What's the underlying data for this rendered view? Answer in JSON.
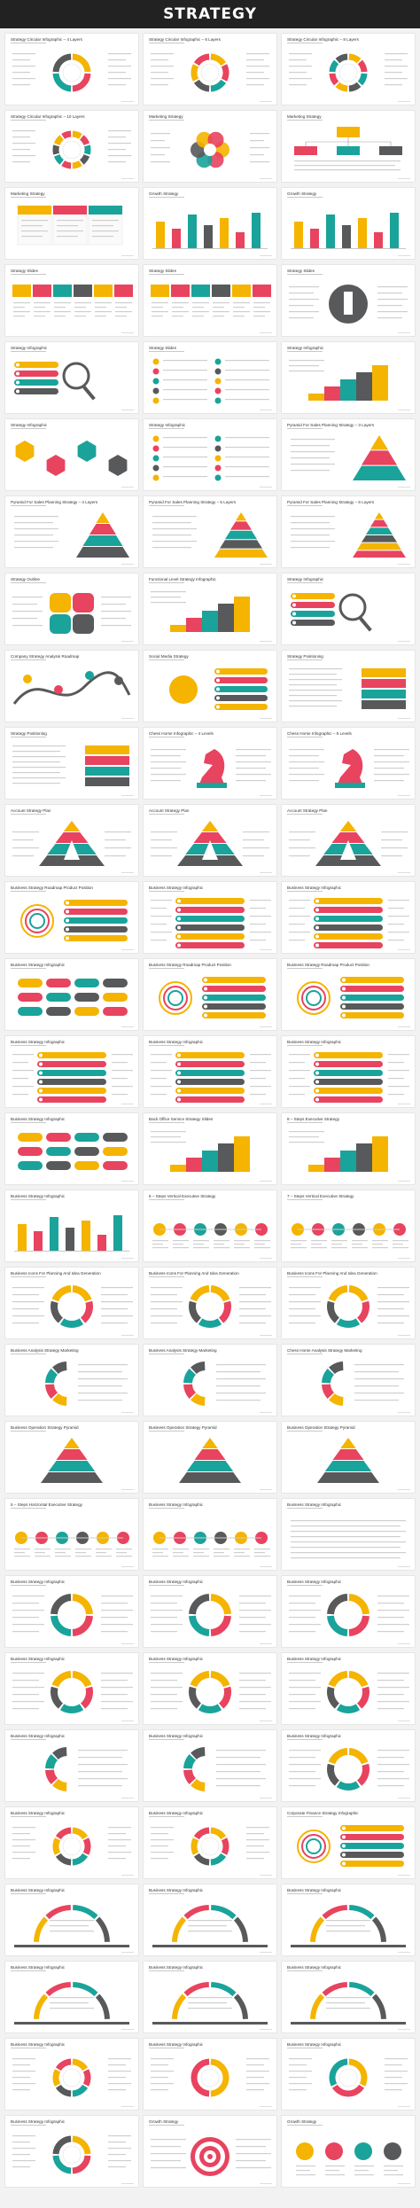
{
  "banner": {
    "title": "STRATEGY"
  },
  "colors": {
    "yellow": "#f4b400",
    "red": "#e8435f",
    "teal": "#1aa39a",
    "gray": "#58595b",
    "light": "#e6e6e6"
  },
  "slides": [
    {
      "title": "Strategy Circular Infographic – 4 Layers",
      "graphic": "ring4"
    },
    {
      "title": "Strategy Circular Infographic – 6 Layers",
      "graphic": "ring6"
    },
    {
      "title": "Strategy Circular Infographic – 8 Layers",
      "graphic": "ring8"
    },
    {
      "title": "Strategy Circular Infographic – 10 Layers",
      "graphic": "ring10"
    },
    {
      "title": "Marketing Strategy",
      "graphic": "flower"
    },
    {
      "title": "Marketing Strategy",
      "graphic": "orgchart"
    },
    {
      "title": "Marketing Strategy",
      "graphic": "cards"
    },
    {
      "title": "Growth Strategy",
      "graphic": "bars"
    },
    {
      "title": "Growth Strategy",
      "graphic": "bars2"
    },
    {
      "title": "Strategy Slides",
      "graphic": "ribbon"
    },
    {
      "title": "Strategy Slides",
      "graphic": "ribbon2"
    },
    {
      "title": "Strategy Slides",
      "graphic": "chess"
    },
    {
      "title": "Strategy Infographic",
      "graphic": "magnifier"
    },
    {
      "title": "Strategy Slides",
      "graphic": "vlist"
    },
    {
      "title": "Strategy Infographic",
      "graphic": "stairs"
    },
    {
      "title": "Strategy Infographic",
      "graphic": "hex"
    },
    {
      "title": "Strategy Infographic",
      "graphic": "checklist"
    },
    {
      "title": "Pyramid For Sales Planning Strategy – 3 Layers",
      "graphic": "pyr3"
    },
    {
      "title": "Pyramid For Sales Planning Strategy – 4 Layers",
      "graphic": "pyr4"
    },
    {
      "title": "Pyramid For Sales Planning Strategy – 5 Layers",
      "graphic": "pyr5"
    },
    {
      "title": "Pyramid For Sales Planning Strategy – 6 Layers",
      "graphic": "pyr6"
    },
    {
      "title": "Strategy Outline",
      "graphic": "quad"
    },
    {
      "title": "Functional Level Strategy Infographic",
      "graphic": "podium"
    },
    {
      "title": "Strategy Infographic",
      "graphic": "magnifier2"
    },
    {
      "title": "Company Strategy Analysis Roadmap",
      "graphic": "roadmap"
    },
    {
      "title": "Social Media Strategy",
      "graphic": "social"
    },
    {
      "title": "Strategy Positioning",
      "graphic": "position"
    },
    {
      "title": "Strategy Positioning",
      "graphic": "position2"
    },
    {
      "title": "Chess Horse Infographic – 4 Levels",
      "graphic": "horse"
    },
    {
      "title": "Chess Horse Infographic – 5 Levels",
      "graphic": "horse2"
    },
    {
      "title": "Account Strategy Plan",
      "graphic": "triA"
    },
    {
      "title": "Account Strategy Plan",
      "graphic": "triA2"
    },
    {
      "title": "Account Strategy Plan",
      "graphic": "triA3"
    },
    {
      "title": "Business Strategy Roadmap Product Position",
      "graphic": "target"
    },
    {
      "title": "Business Strategy Infographic",
      "graphic": "pills"
    },
    {
      "title": "Business Strategy Infographic",
      "graphic": "pills2"
    },
    {
      "title": "Business Strategy Infographic",
      "graphic": "dotrows"
    },
    {
      "title": "Business Strategy Roadmap Product Position",
      "graphic": "target2"
    },
    {
      "title": "Business Strategy Roadmap Product Position",
      "graphic": "target3"
    },
    {
      "title": "Business Strategy Infographic",
      "graphic": "arrows"
    },
    {
      "title": "Business Strategy Infographic",
      "graphic": "pills3"
    },
    {
      "title": "Business Strategy Infographic",
      "graphic": "pills4"
    },
    {
      "title": "Business Strategy Infographic",
      "graphic": "dotrows2"
    },
    {
      "title": "Back Office Service Strategy Slides",
      "graphic": "steps"
    },
    {
      "title": "8 – Steps Executive Strategy",
      "graphic": "steps8"
    },
    {
      "title": "Business Strategy Infographic",
      "graphic": "bars3"
    },
    {
      "title": "6 – Steps Vertical Executive Strategy",
      "graphic": "vsteps6"
    },
    {
      "title": "7 – Steps Vertical Executive Strategy",
      "graphic": "vsteps7"
    },
    {
      "title": "Business Icons For Planning And Idea Generation",
      "graphic": "donut"
    },
    {
      "title": "Business Icons For Planning And Idea Generation",
      "graphic": "donut2"
    },
    {
      "title": "Business Icons For Planning And Idea Generation",
      "graphic": "donut3"
    },
    {
      "title": "Business Analysis Strategy Marketing",
      "graphic": "halfdonut"
    },
    {
      "title": "Business Analysis Strategy Marketing",
      "graphic": "halfdonut2"
    },
    {
      "title": "Chess Horse Analysis Strategy Marketing",
      "graphic": "halfdonut3"
    },
    {
      "title": "Business Operation Strategy Pyramid",
      "graphic": "pyrC"
    },
    {
      "title": "Business Operation Strategy Pyramid",
      "graphic": "pyrC2"
    },
    {
      "title": "Business Operation Strategy Pyramid",
      "graphic": "pyrC3"
    },
    {
      "title": "5 – Steps Horizontal Executive Strategy",
      "graphic": "hsteps"
    },
    {
      "title": "Business Strategy Infographic",
      "graphic": "hsteps2"
    },
    {
      "title": "Business Strategy Infographic",
      "graphic": "blank"
    },
    {
      "title": "Business Strategy Infographic",
      "graphic": "diamond"
    },
    {
      "title": "Business Strategy Infographic",
      "graphic": "diamond2"
    },
    {
      "title": "Business Strategy Infographic",
      "graphic": "diamond3"
    },
    {
      "title": "Business Strategy Infographic",
      "graphic": "donut4"
    },
    {
      "title": "Business Strategy Infographic",
      "graphic": "donut5"
    },
    {
      "title": "Business Strategy Infographic",
      "graphic": "donut6"
    },
    {
      "title": "Business Strategy Infographic",
      "graphic": "halfdonut4"
    },
    {
      "title": "Business Strategy Infographic",
      "graphic": "halfdonut5"
    },
    {
      "title": "Business Strategy Infographic",
      "graphic": "donut7"
    },
    {
      "title": "Business Strategy Infographic",
      "graphic": "ring6b"
    },
    {
      "title": "Business Strategy Infographic",
      "graphic": "ring6c"
    },
    {
      "title": "Corporate Finance Strategy Infographic",
      "graphic": "target4"
    },
    {
      "title": "Business Strategy Infographic",
      "graphic": "arch"
    },
    {
      "title": "Business Strategy Infographic",
      "graphic": "arch2"
    },
    {
      "title": "Business Strategy Infographic",
      "graphic": "arch3"
    },
    {
      "title": "Business Strategy Infographic",
      "graphic": "arch4"
    },
    {
      "title": "Business Strategy Infographic",
      "graphic": "arch5"
    },
    {
      "title": "Business Strategy Infographic",
      "graphic": "arch6"
    },
    {
      "title": "Business Strategy Infographic",
      "graphic": "rings"
    },
    {
      "title": "Business Strategy Infographic",
      "graphic": "rings2"
    },
    {
      "title": "Business Strategy Infographic",
      "graphic": "rings3"
    },
    {
      "title": "Business Strategy Infographic",
      "graphic": "rings4"
    },
    {
      "title": "Growth Strategy",
      "graphic": "bullseye"
    },
    {
      "title": "Growth Strategy",
      "graphic": "bulbs"
    }
  ]
}
